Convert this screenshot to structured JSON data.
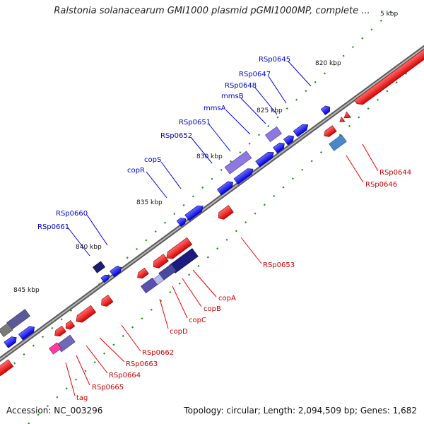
{
  "title": "Ralstonia solanacearum GMI1000 plasmid pGMI1000MP, complete ...",
  "footer": {
    "accession": "Accession: NC_003296",
    "summary": "Topology: circular; Length: 2,094,509 bp; Genes: 1,682"
  },
  "kbp_marks": [
    {
      "label": "5 kbp"
    },
    {
      "label": "820 kbp"
    },
    {
      "label": "825 kbp"
    },
    {
      "label": "830 kbp"
    },
    {
      "label": "835 kbp"
    },
    {
      "label": "840 kbp"
    },
    {
      "label": "845 kbp"
    }
  ],
  "gene_labels_forward": [
    "RSp0645",
    "RSp0647",
    "RSp0648",
    "mmsB",
    "mmsA",
    "RSp0651",
    "RSp0652",
    "copS",
    "copR",
    "RSp0660",
    "RSp0661"
  ],
  "gene_labels_reverse": [
    "RSp0644",
    "RSp0646",
    "RSp0653",
    "copA",
    "copB",
    "copC",
    "copD",
    "RSp0662",
    "RSp0663",
    "RSp0664",
    "RSp0665",
    "tag"
  ],
  "colors": {
    "forward": "#1f1fff",
    "reverse": "#ff1f1f",
    "label_forward": "#0000cc",
    "label_reverse": "#cc0000",
    "backbone": "#808080",
    "tick": "#1f8f1f"
  }
}
